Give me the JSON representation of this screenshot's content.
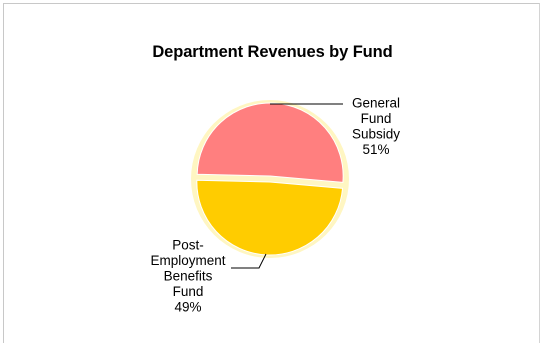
{
  "chart_data": {
    "type": "pie",
    "title": "Department Revenues by Fund",
    "slices": [
      {
        "label_lines": [
          "General",
          "Fund",
          "Subsidy"
        ],
        "percent_label": "51%",
        "value": 51,
        "color": "#ff7f7f"
      },
      {
        "label_lines": [
          "Post-",
          "Employment",
          "Benefits",
          "Fund"
        ],
        "percent_label": "49%",
        "value": 49,
        "color": "#ffcc00"
      }
    ],
    "halo_color": "#fff6c2",
    "legend": "none",
    "labels_with_leader_lines": true
  }
}
